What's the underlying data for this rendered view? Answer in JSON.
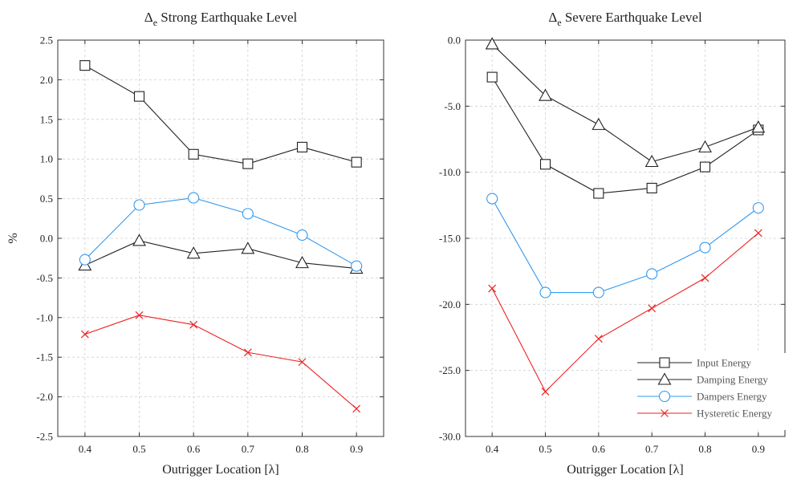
{
  "chart_data": [
    {
      "type": "line",
      "title": {
        "main": "Δ",
        "sub": "e",
        "rest": " Strong Earthquake Level"
      },
      "xlabel": "Outrigger Location [λ]",
      "ylabel": "%",
      "x": [
        0.4,
        0.5,
        0.6,
        0.7,
        0.8,
        0.9
      ],
      "xticks": [
        "0.4",
        "0.5",
        "0.6",
        "0.7",
        "0.8",
        "0.9"
      ],
      "xlim": [
        0.35,
        0.95
      ],
      "ylim": [
        -2.5,
        2.5
      ],
      "yticks": [
        2.5,
        2.0,
        1.5,
        1.0,
        0.5,
        0.0,
        -0.5,
        -1.0,
        -1.5,
        -2.0,
        -2.5
      ],
      "ytick_labels": [
        "2.5",
        "2.0",
        "1.5",
        "1.0",
        "0.5",
        "0.0",
        "-0.5",
        "-1.0",
        "-1.5",
        "-2.0",
        "-2.5"
      ],
      "grid": true,
      "series": [
        {
          "name": "Input Energy",
          "values": [
            2.18,
            1.79,
            1.06,
            0.94,
            1.15,
            0.96
          ],
          "color": "#222222",
          "marker": "square"
        },
        {
          "name": "Damping Energy",
          "values": [
            -0.34,
            -0.03,
            -0.19,
            -0.13,
            -0.31,
            -0.38
          ],
          "color": "#222222",
          "marker": "triangle"
        },
        {
          "name": "Dampers Energy",
          "values": [
            -0.27,
            0.42,
            0.51,
            0.31,
            0.04,
            -0.35
          ],
          "color": "#3399ee",
          "marker": "circle"
        },
        {
          "name": "Hysteretic Energy",
          "values": [
            -1.21,
            -0.97,
            -1.09,
            -1.44,
            -1.56,
            -2.15
          ],
          "color": "#ee2222",
          "marker": "x"
        }
      ]
    },
    {
      "type": "line",
      "title": {
        "main": "Δ",
        "sub": "e",
        "rest": " Severe Earthquake Level"
      },
      "xlabel": "Outrigger Location [λ]",
      "ylabel": "",
      "x": [
        0.4,
        0.5,
        0.6,
        0.7,
        0.8,
        0.9
      ],
      "xticks": [
        "0.4",
        "0.5",
        "0.6",
        "0.7",
        "0.8",
        "0.9"
      ],
      "xlim": [
        0.35,
        0.95
      ],
      "ylim": [
        -30,
        0
      ],
      "yticks": [
        0,
        -5,
        -10,
        -15,
        -20,
        -25,
        -30
      ],
      "ytick_labels": [
        "0.0",
        "-5.0",
        "-10.0",
        "-15.0",
        "-20.0",
        "-25.0",
        "-30.0"
      ],
      "grid": true,
      "legend": "bottom-right",
      "series": [
        {
          "name": "Input Energy",
          "values": [
            -2.8,
            -9.4,
            -11.6,
            -11.2,
            -9.6,
            -6.8
          ],
          "color": "#222222",
          "marker": "square"
        },
        {
          "name": "Damping Energy",
          "values": [
            -0.3,
            -4.2,
            -6.4,
            -9.2,
            -8.1,
            -6.6
          ],
          "color": "#222222",
          "marker": "triangle"
        },
        {
          "name": "Dampers Energy",
          "values": [
            -12.0,
            -19.1,
            -19.1,
            -17.7,
            -15.7,
            -12.7
          ],
          "color": "#3399ee",
          "marker": "circle"
        },
        {
          "name": "Hysteretic Energy",
          "values": [
            -18.8,
            -26.6,
            -22.6,
            -20.3,
            -18.0,
            -14.6
          ],
          "color": "#ee2222",
          "marker": "x"
        }
      ]
    }
  ]
}
